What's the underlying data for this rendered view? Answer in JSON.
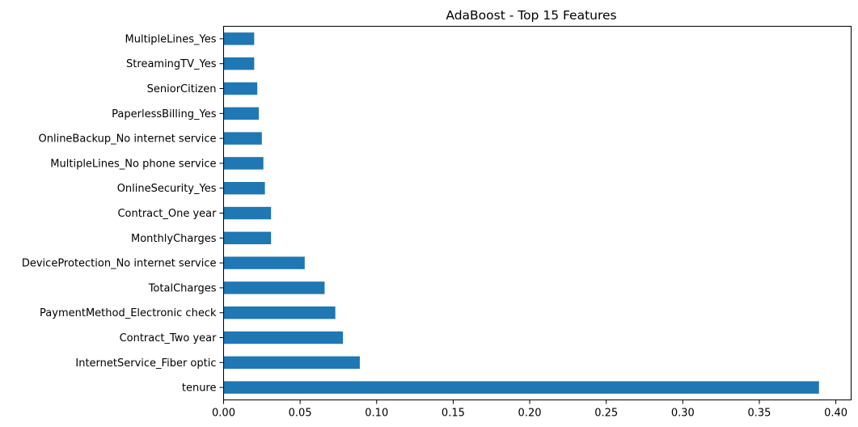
{
  "chart_data": {
    "type": "bar",
    "orientation": "horizontal",
    "title": "AdaBoost - Top 15 Features",
    "xlabel": "",
    "ylabel": "",
    "xlim": [
      0,
      0.41
    ],
    "xticks": [
      "0.00",
      "0.05",
      "0.10",
      "0.15",
      "0.20",
      "0.25",
      "0.30",
      "0.35",
      "0.40"
    ],
    "grid": false,
    "bar_color": "#1f77b4",
    "categories": [
      "MultipleLines_Yes",
      "StreamingTV_Yes",
      "SeniorCitizen",
      "PaperlessBilling_Yes",
      "OnlineBackup_No internet service",
      "MultipleLines_No phone service",
      "OnlineSecurity_Yes",
      "Contract_One year",
      "MonthlyCharges",
      "DeviceProtection_No internet service",
      "TotalCharges",
      "PaymentMethod_Electronic check",
      "Contract_Two year",
      "InternetService_Fiber optic",
      "tenure"
    ],
    "values": [
      0.02,
      0.02,
      0.022,
      0.023,
      0.025,
      0.026,
      0.027,
      0.031,
      0.031,
      0.053,
      0.066,
      0.073,
      0.078,
      0.089,
      0.389
    ]
  }
}
